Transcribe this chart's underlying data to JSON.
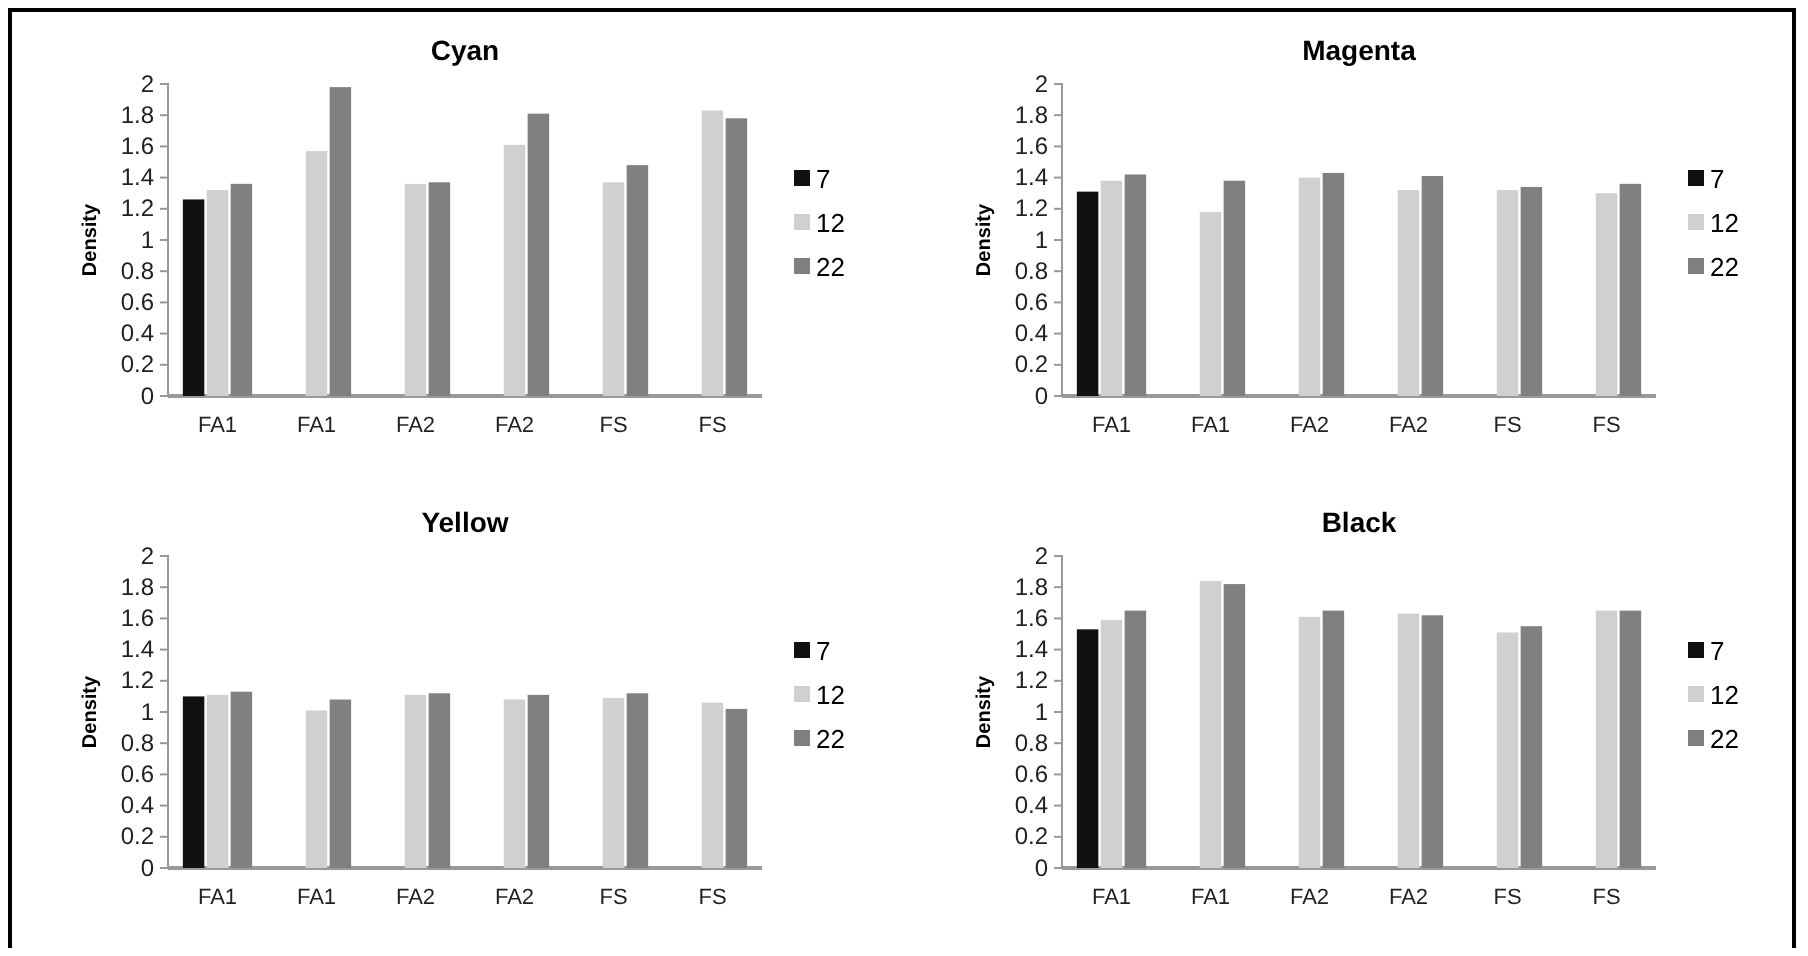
{
  "chart_data": [
    {
      "type": "bar",
      "title": "Cyan",
      "ylabel": "Density",
      "categories": [
        "FA1",
        "FA1",
        "FA2",
        "FA2",
        "FS",
        "FS"
      ],
      "ylim": [
        0,
        2
      ],
      "yticks": [
        0,
        0.2,
        0.4,
        0.6,
        0.8,
        1,
        1.2,
        1.4,
        1.6,
        1.8,
        2
      ],
      "grid": false,
      "legend": "right",
      "series": [
        {
          "name": "7",
          "color": "#111111",
          "values": [
            1.26,
            null,
            null,
            null,
            null,
            null
          ]
        },
        {
          "name": "12",
          "color": "#d0d0d0",
          "values": [
            1.32,
            1.57,
            1.36,
            1.61,
            1.37,
            1.83
          ]
        },
        {
          "name": "22",
          "color": "#808080",
          "values": [
            1.36,
            1.98,
            1.37,
            1.81,
            1.48,
            1.78
          ]
        }
      ]
    },
    {
      "type": "bar",
      "title": "Magenta",
      "ylabel": "Density",
      "categories": [
        "FA1",
        "FA1",
        "FA2",
        "FA2",
        "FS",
        "FS"
      ],
      "ylim": [
        0,
        2
      ],
      "yticks": [
        0,
        0.2,
        0.4,
        0.6,
        0.8,
        1,
        1.2,
        1.4,
        1.6,
        1.8,
        2
      ],
      "grid": false,
      "legend": "right",
      "series": [
        {
          "name": "7",
          "color": "#111111",
          "values": [
            1.31,
            null,
            null,
            null,
            null,
            null
          ]
        },
        {
          "name": "12",
          "color": "#d0d0d0",
          "values": [
            1.38,
            1.18,
            1.4,
            1.32,
            1.32,
            1.3
          ]
        },
        {
          "name": "22",
          "color": "#808080",
          "values": [
            1.42,
            1.38,
            1.43,
            1.41,
            1.34,
            1.36
          ]
        }
      ]
    },
    {
      "type": "bar",
      "title": "Yellow",
      "ylabel": "Density",
      "categories": [
        "FA1",
        "FA1",
        "FA2",
        "FA2",
        "FS",
        "FS"
      ],
      "ylim": [
        0,
        2
      ],
      "yticks": [
        0,
        0.2,
        0.4,
        0.6,
        0.8,
        1,
        1.2,
        1.4,
        1.6,
        1.8,
        2
      ],
      "grid": false,
      "legend": "right",
      "series": [
        {
          "name": "7",
          "color": "#111111",
          "values": [
            1.1,
            null,
            null,
            null,
            null,
            null
          ]
        },
        {
          "name": "12",
          "color": "#d0d0d0",
          "values": [
            1.11,
            1.01,
            1.11,
            1.08,
            1.09,
            1.06
          ]
        },
        {
          "name": "22",
          "color": "#808080",
          "values": [
            1.13,
            1.08,
            1.12,
            1.11,
            1.12,
            1.02
          ]
        }
      ]
    },
    {
      "type": "bar",
      "title": "Black",
      "ylabel": "Density",
      "categories": [
        "FA1",
        "FA1",
        "FA2",
        "FA2",
        "FS",
        "FS"
      ],
      "ylim": [
        0,
        2
      ],
      "yticks": [
        0,
        0.2,
        0.4,
        0.6,
        0.8,
        1,
        1.2,
        1.4,
        1.6,
        1.8,
        2
      ],
      "grid": false,
      "legend": "right",
      "series": [
        {
          "name": "7",
          "color": "#111111",
          "values": [
            1.53,
            null,
            null,
            null,
            null,
            null
          ]
        },
        {
          "name": "12",
          "color": "#d0d0d0",
          "values": [
            1.59,
            1.84,
            1.61,
            1.63,
            1.51,
            1.65
          ]
        },
        {
          "name": "22",
          "color": "#808080",
          "values": [
            1.65,
            1.82,
            1.65,
            1.62,
            1.55,
            1.65
          ]
        }
      ]
    }
  ]
}
